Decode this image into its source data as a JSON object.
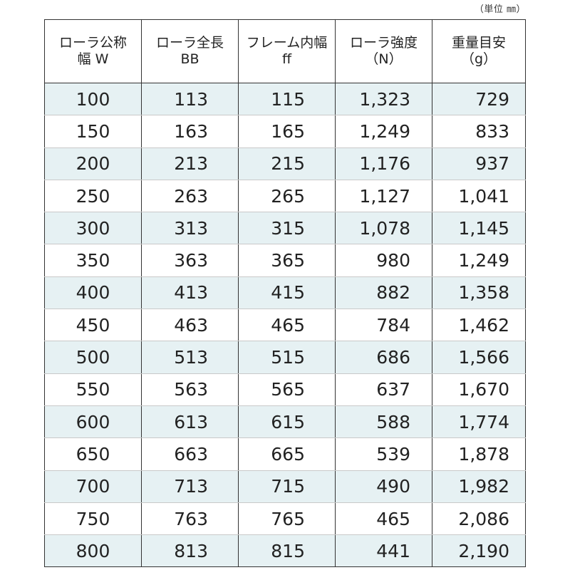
{
  "unit_note": "（単位 ㎜）",
  "headers": [
    {
      "line1": "ローラ公称",
      "line2": "幅 W"
    },
    {
      "line1": "ローラ全長",
      "line2": "BB"
    },
    {
      "line1": "フレーム内幅",
      "line2": "ff"
    },
    {
      "line1": "ローラ強度",
      "line2": "（N）"
    },
    {
      "line1": "重量目安",
      "line2": "（g）"
    }
  ],
  "rows": [
    [
      "100",
      "113",
      "115",
      "1,323",
      "729"
    ],
    [
      "150",
      "163",
      "165",
      "1,249",
      "833"
    ],
    [
      "200",
      "213",
      "215",
      "1,176",
      "937"
    ],
    [
      "250",
      "263",
      "265",
      "1,127",
      "1,041"
    ],
    [
      "300",
      "313",
      "315",
      "1,078",
      "1,145"
    ],
    [
      "350",
      "363",
      "365",
      "980",
      "1,249"
    ],
    [
      "400",
      "413",
      "415",
      "882",
      "1,358"
    ],
    [
      "450",
      "463",
      "465",
      "784",
      "1,462"
    ],
    [
      "500",
      "513",
      "515",
      "686",
      "1,566"
    ],
    [
      "550",
      "563",
      "565",
      "637",
      "1,670"
    ],
    [
      "600",
      "613",
      "615",
      "588",
      "1,774"
    ],
    [
      "650",
      "663",
      "665",
      "539",
      "1,878"
    ],
    [
      "700",
      "713",
      "715",
      "490",
      "1,982"
    ],
    [
      "750",
      "763",
      "765",
      "465",
      "2,086"
    ],
    [
      "800",
      "813",
      "815",
      "441",
      "2,190"
    ]
  ],
  "colors": {
    "shaded_row": "#e6f1f3",
    "border": "#333333"
  }
}
